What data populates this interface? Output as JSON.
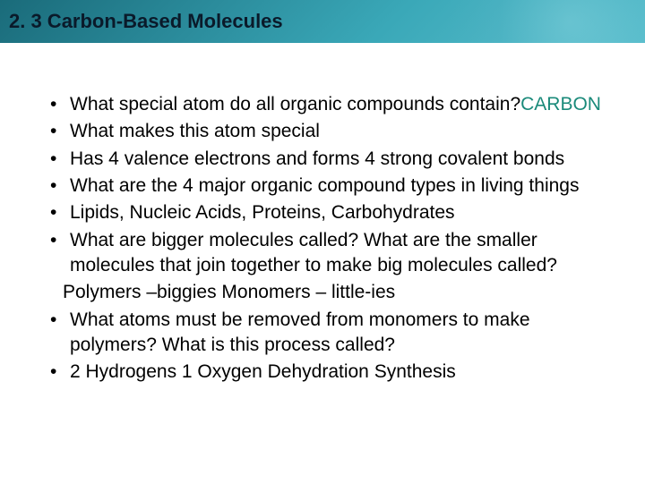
{
  "header": {
    "title": "2. 3 Carbon-Based Molecules",
    "background_gradient": [
      "#1a6b7a",
      "#2a8a9a",
      "#3aa8b8",
      "#5bc0ce"
    ],
    "title_color": "#0a1a2a",
    "title_fontsize": 22
  },
  "content": {
    "font_family": "Arial",
    "bullet_fontsize": 21,
    "answer_color": "#1a8a7a",
    "items": [
      {
        "type": "bullet",
        "text_before": "What special atom do all organic compounds contain?",
        "answer": "CARBON",
        "text_after": ""
      },
      {
        "type": "bullet",
        "text_before": "What makes this atom special",
        "answer": "",
        "text_after": ""
      },
      {
        "type": "bullet",
        "text_before": "Has 4 valence electrons and forms 4 strong covalent bonds",
        "answer": "",
        "text_after": ""
      },
      {
        "type": "bullet",
        "text_before": "What are the 4 major organic compound types in living things",
        "answer": "",
        "text_after": ""
      },
      {
        "type": "bullet",
        "text_before": "Lipids, Nucleic Acids, Proteins, Carbohydrates",
        "answer": "",
        "text_after": ""
      },
      {
        "type": "bullet",
        "text_before": "What are bigger molecules called?  What are the smaller molecules that join together to make big molecules called?",
        "answer": "",
        "text_after": ""
      },
      {
        "type": "sub",
        "text": "Polymers –biggies   Monomers – little-ies"
      },
      {
        "type": "bullet",
        "text_before": "What atoms must be removed from monomers to make polymers?  What is this process called?",
        "answer": "",
        "text_after": ""
      },
      {
        "type": "bullet",
        "text_before": "2 Hydrogens 1 Oxygen      Dehydration Synthesis",
        "answer": "",
        "text_after": ""
      }
    ]
  }
}
